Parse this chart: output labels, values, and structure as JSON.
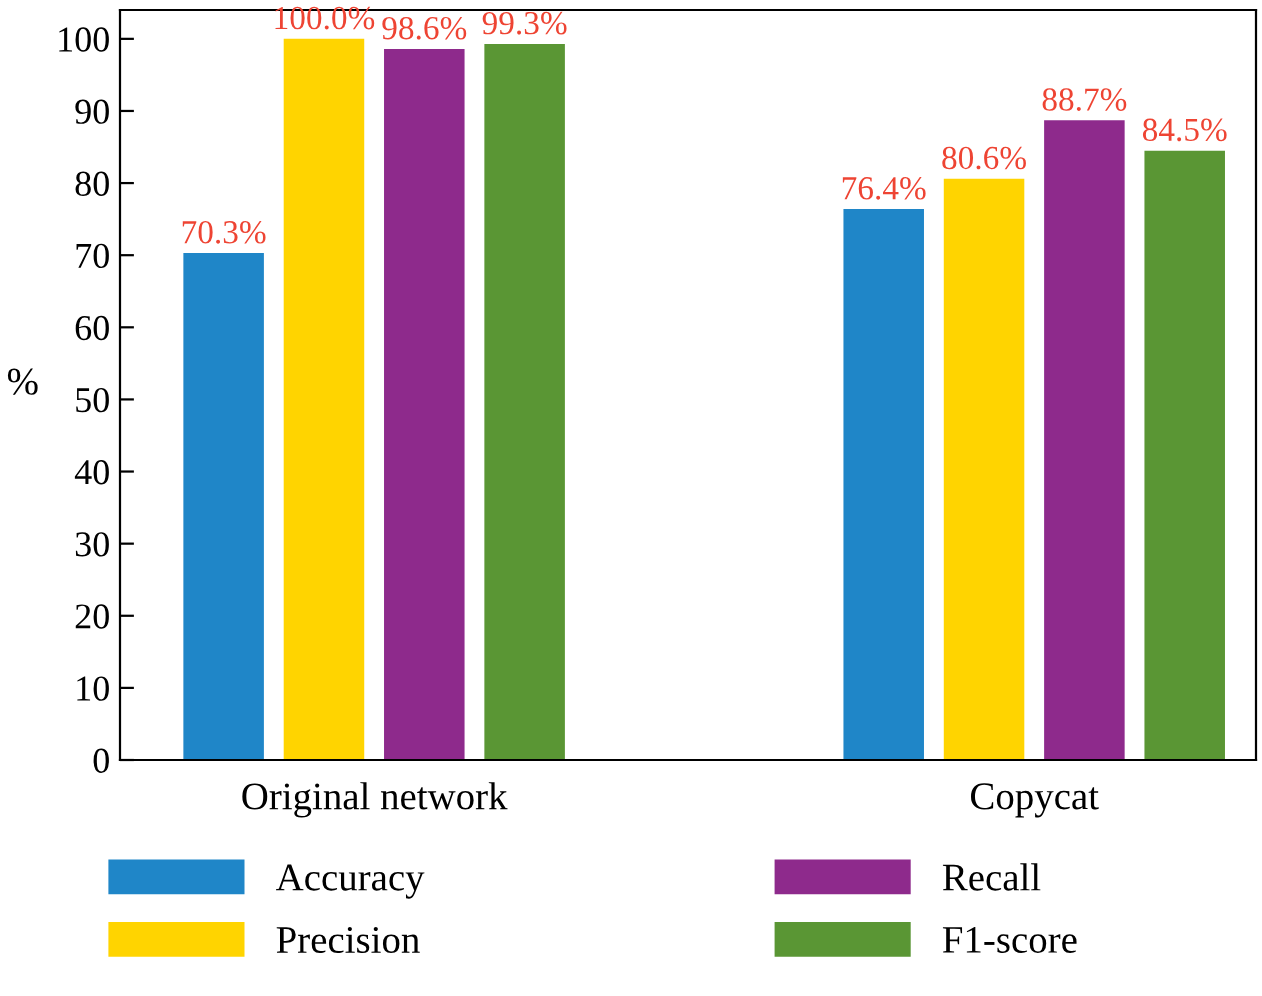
{
  "chart_data": {
    "type": "bar",
    "ylabel": "%",
    "categories": [
      "Original network",
      "Copycat"
    ],
    "series": [
      {
        "name": "Accuracy",
        "color": "#1f86c8",
        "values": [
          70.3,
          76.4
        ],
        "value_labels": [
          "70.3%",
          "76.4%"
        ]
      },
      {
        "name": "Precision",
        "color": "#ffd400",
        "values": [
          100.0,
          80.6
        ],
        "value_labels": [
          "100.0%",
          "80.6%"
        ]
      },
      {
        "name": "Recall",
        "color": "#8e2a8c",
        "values": [
          98.6,
          88.7
        ],
        "value_labels": [
          "98.6%",
          "88.7%"
        ]
      },
      {
        "name": "F1-score",
        "color": "#5a9634",
        "values": [
          99.3,
          84.5
        ],
        "value_labels": [
          "99.3%",
          "84.5%"
        ]
      }
    ],
    "ylim": [
      0,
      104
    ],
    "yticks": [
      0,
      10,
      20,
      30,
      40,
      50,
      60,
      70,
      80,
      90,
      100
    ],
    "grid": false,
    "legend": "bottom"
  }
}
